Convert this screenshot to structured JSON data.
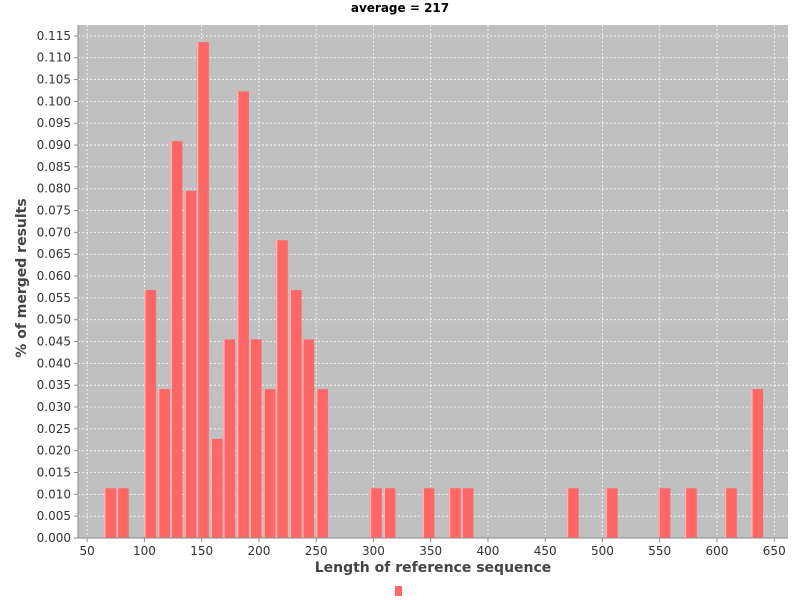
{
  "chart_data": {
    "type": "bar",
    "title": "average = 217",
    "xlabel": "Length of reference sequence",
    "ylabel": "% of merged results",
    "xlim": [
      42,
      662
    ],
    "ylim": [
      0,
      0.1175
    ],
    "x_ticks": [
      "50",
      "100",
      "150",
      "200",
      "250",
      "300",
      "350",
      "400",
      "450",
      "500",
      "550",
      "600",
      "650"
    ],
    "y_ticks": [
      "0.000",
      "0.005",
      "0.010",
      "0.015",
      "0.020",
      "0.025",
      "0.030",
      "0.035",
      "0.040",
      "0.045",
      "0.050",
      "0.055",
      "0.060",
      "0.065",
      "0.070",
      "0.075",
      "0.080",
      "0.085",
      "0.090",
      "0.095",
      "0.100",
      "0.105",
      "0.110",
      "0.115"
    ],
    "grid": true,
    "background": "#c0c0c0",
    "bar_color": "#ff6666",
    "legend": {
      "position": "bottom",
      "entries": [
        ""
      ]
    },
    "series": [
      {
        "x": [
          70,
          81,
          105,
          117,
          128,
          140,
          151,
          163,
          174,
          186,
          197,
          209,
          220,
          232,
          243,
          255,
          302,
          314,
          348,
          371,
          382,
          474,
          508,
          554,
          577,
          612,
          635
        ],
        "values": [
          0.0114,
          0.0114,
          0.0568,
          0.0341,
          0.0909,
          0.0795,
          0.1136,
          0.0227,
          0.0455,
          0.1023,
          0.0455,
          0.0341,
          0.0682,
          0.0568,
          0.0455,
          0.0341,
          0.0114,
          0.0114,
          0.0114,
          0.0114,
          0.0114,
          0.0114,
          0.0114,
          0.0114,
          0.0114,
          0.0114,
          0.0341
        ]
      }
    ]
  }
}
